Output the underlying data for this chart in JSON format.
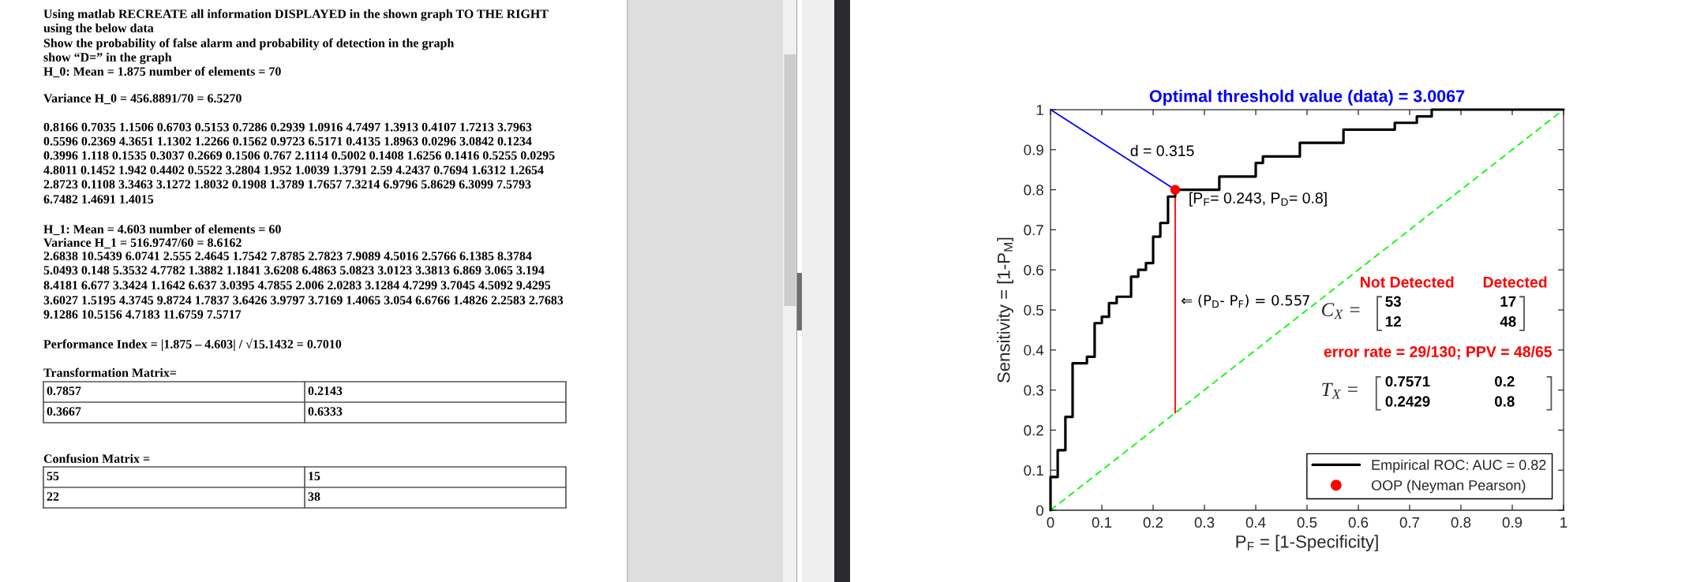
{
  "chart_data": [
    {
      "type": "other",
      "annotations": [
        "Using matlab RECREATE all information DISPLAYED in the shown graph TO THE RIGHT",
        "using the below data",
        "Show the probability of false alarm and probability of detection in the graph",
        "show “D=” in the graph",
        "H_0: Mean = 1.875 number of elements = 70",
        "Variance H_0 = 456.8891/70 = 6.5270",
        "0.8166 0.7035 1.1506 0.6703 0.5153 0.7286 0.2939 1.0916 4.7497 1.3913 0.4107 1.7213 3.7963",
        "0.5596 0.2369 4.3651 1.1302 1.2266 0.1562 0.9723 6.5171 0.4135 1.8963 0.0296 3.0842 0.1234",
        "0.3996 1.118 0.1535 0.3037 0.2669 0.1506 0.767 2.1114 0.5002 0.1408 1.6256 0.1416 0.5255 0.0295",
        "4.8011 0.1452 1.942 0.4402 0.5522 3.2804 1.952 1.0039 1.3791 2.59 4.2437 0.7694 1.6312 1.2654",
        "2.8723 0.1108 3.3463 3.1272 1.8032 0.1908 1.3789 1.7657 7.3214 6.9796 5.8629 6.3099 7.5793",
        "6.7482 1.4691 1.4015",
        "H_1: Mean = 4.603 number of elements = 60",
        "Variance H_1 = 516.9747/60 = 8.6162",
        "2.6838 10.5439 6.0741 2.555 2.4645 1.7542 7.8785 2.7823 7.9089 4.5016 2.5766 6.1385 8.3784",
        "5.0493 0.148 5.3532 4.7782 1.3882 1.1841 3.6208 6.4863 5.0823 3.0123 3.3813 6.869 3.065 3.194",
        "8.4181 6.677 3.3424 1.1642 6.637 3.0395 4.7855 2.006 2.0283 3.1284 4.7299 3.7045 4.5092 9.4295",
        "3.6027 1.5195 4.3745 9.8724 1.7837 3.6426 3.9797 3.7169 1.4065 3.054 6.6766 1.4826 2.2583 2.7683",
        "9.1286 10.5156 4.7183 11.6759 7.5717",
        "Performance Index = |1.875 – 4.603| / √15.1432 = 0.7010",
        "Transformation Matrix=",
        "0.7857",
        "0.2143",
        "0.3667",
        "0.6333",
        "Confusion Matrix =",
        "55",
        "15",
        "22",
        "38"
      ]
    },
    {
      "type": "line",
      "title": "Optimal threshold value (data) = 3.0067",
      "xlabel": "P$_{F}$ = [1-Specificity]",
      "ylabel": "Sensitivity = [1-P$_{M}$]",
      "xlim": [
        0,
        1
      ],
      "ylim": [
        0,
        1
      ],
      "xticks": [
        0,
        0.1,
        0.2,
        0.3,
        0.4,
        0.5,
        0.6,
        0.7,
        0.8,
        0.9,
        1
      ],
      "yticks": [
        0,
        0.1,
        0.2,
        0.3,
        0.4,
        0.5,
        0.6,
        0.7,
        0.8,
        0.9,
        1
      ],
      "legend": "bottom right",
      "series": [
        {
          "type": "line",
          "color": "#00ff00",
          "line_style": "dashed",
          "x": [
            0,
            1
          ],
          "values": [
            0,
            1
          ]
        },
        {
          "name": "Empirical ROC: AUC = 0.82",
          "type": "step",
          "color": "#000000",
          "x": [
            0,
            0,
            0.014,
            0.029,
            0.043,
            0.071,
            0.086,
            0.1,
            0.114,
            0.129,
            0.157,
            0.171,
            0.186,
            0.2,
            0.214,
            0.229,
            0.243,
            0.329,
            0.4,
            0.414,
            0.486,
            0.571,
            0.671,
            0.714,
            0.743,
            1
          ],
          "values": [
            0,
            0.083,
            0.15,
            0.233,
            0.367,
            0.383,
            0.467,
            0.483,
            0.517,
            0.533,
            0.583,
            0.6,
            0.617,
            0.683,
            0.717,
            0.783,
            0.8,
            0.833,
            0.867,
            0.883,
            0.917,
            0.95,
            0.967,
            0.983,
            1,
            1
          ]
        },
        {
          "type": "line",
          "color": "#0000ff",
          "x": [
            0,
            0.243
          ],
          "values": [
            1,
            0.8
          ]
        },
        {
          "type": "line",
          "color": "#ff0000",
          "x": [
            0.243,
            0.243
          ],
          "values": [
            0.243,
            0.8
          ]
        },
        {
          "name": "OOP (Neyman Pearson)",
          "type": "scatter",
          "color": "#ff0000",
          "marker": "circle",
          "x": [
            0.243
          ],
          "values": [
            0.8
          ]
        }
      ],
      "annotations": [
        "d = 0.315",
        "[P$_{F}$= 0.243, P$_{D}$= 0.8]",
        "⇐ (P$_{D}$- P$_{F}$) = 0.557",
        "Not Detected",
        "Detected",
        "C$_{X}$ =",
        "53",
        "17",
        "12",
        "48",
        "error rate = 29/130; PPV = 48/65",
        "T$_{X}$ =",
        "0.7571",
        "0.2",
        "0.2429",
        "0.8"
      ]
    }
  ]
}
